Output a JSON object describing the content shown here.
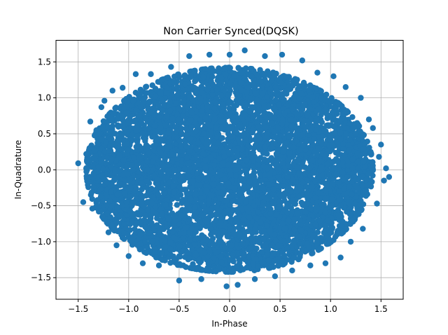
{
  "chart_data": {
    "type": "scatter",
    "title": "Non Carrier Synced(DQSK)",
    "xlabel": "In-Phase",
    "ylabel": "In-Quadrature",
    "xlim": [
      -1.72,
      1.72
    ],
    "ylim": [
      -1.8,
      1.8
    ],
    "xticks": [
      -1.5,
      -1.0,
      -0.5,
      0.0,
      0.5,
      1.0,
      1.5
    ],
    "xtick_labels": [
      "−1.5",
      "−1.0",
      "−0.5",
      "0.0",
      "0.5",
      "1.0",
      "1.5"
    ],
    "yticks": [
      -1.5,
      -1.0,
      -0.5,
      0.0,
      0.5,
      1.0,
      1.5
    ],
    "ytick_labels": [
      "−1.5",
      "−1.0",
      "−0.5",
      "0.0",
      "0.5",
      "1.0",
      "1.5"
    ],
    "grid": true,
    "legend": "none",
    "series_color": "#1f77b4",
    "point_count_estimate": 6000,
    "distribution": "dense disc centred at (0, 0) with radius about 1.4; outermost points near x = -1.5 and x = 1.58, y = -1.62 and y = 1.65",
    "points": [
      [
        -1.5,
        0.09
      ],
      [
        -1.45,
        -0.45
      ],
      [
        -1.42,
        0.22
      ],
      [
        -1.38,
        0.67
      ],
      [
        -1.36,
        -0.54
      ],
      [
        -1.32,
        0.55
      ],
      [
        -1.28,
        -0.58
      ],
      [
        -1.27,
        0.87
      ],
      [
        -1.24,
        0.96
      ],
      [
        -1.2,
        -0.87
      ],
      [
        -1.16,
        1.1
      ],
      [
        -1.12,
        -1.05
      ],
      [
        -1.06,
        1.14
      ],
      [
        -1.0,
        -1.2
      ],
      [
        -0.93,
        1.33
      ],
      [
        -0.86,
        -1.3
      ],
      [
        -0.78,
        1.33
      ],
      [
        -0.7,
        -1.33
      ],
      [
        -0.58,
        1.43
      ],
      [
        -0.5,
        -1.54
      ],
      [
        -0.4,
        1.58
      ],
      [
        -0.28,
        -1.52
      ],
      [
        -0.2,
        1.6
      ],
      [
        -0.03,
        -1.62
      ],
      [
        0.0,
        1.6
      ],
      [
        0.08,
        -1.6
      ],
      [
        0.15,
        1.66
      ],
      [
        0.25,
        -1.52
      ],
      [
        0.35,
        1.58
      ],
      [
        0.45,
        -1.48
      ],
      [
        0.52,
        1.6
      ],
      [
        0.62,
        -1.4
      ],
      [
        0.72,
        1.52
      ],
      [
        0.8,
        -1.33
      ],
      [
        0.87,
        1.35
      ],
      [
        0.95,
        -1.3
      ],
      [
        1.03,
        1.3
      ],
      [
        1.1,
        -1.22
      ],
      [
        1.15,
        1.15
      ],
      [
        1.2,
        -1.0
      ],
      [
        1.3,
        1.0
      ],
      [
        1.32,
        -0.82
      ],
      [
        1.38,
        0.7
      ],
      [
        1.42,
        0.58
      ],
      [
        1.46,
        -0.47
      ],
      [
        1.5,
        0.35
      ],
      [
        1.53,
        -0.15
      ],
      [
        1.55,
        0.02
      ],
      [
        1.58,
        -0.1
      ],
      [
        1.48,
        0.18
      ]
    ]
  }
}
